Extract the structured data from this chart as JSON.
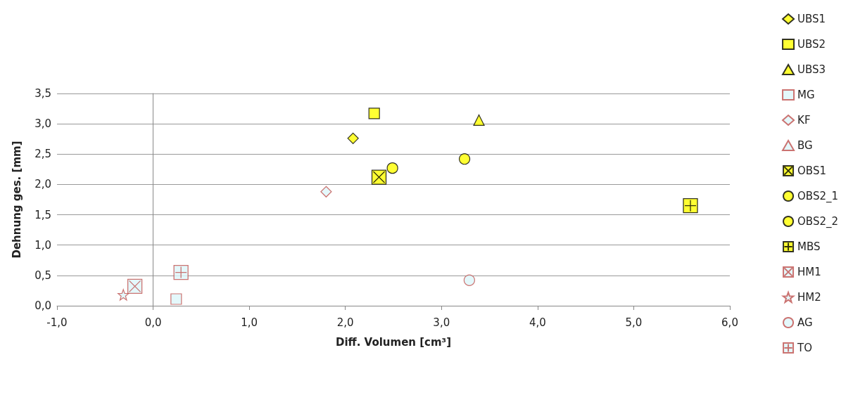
{
  "chart_data": {
    "type": "scatter",
    "xlabel": "Diff. Volumen [cm³]",
    "ylabel": "Dehnung ges. [mm]",
    "xlim": [
      -1,
      6
    ],
    "xticks": [
      {
        "value": -1,
        "label": "-1,0"
      },
      {
        "value": 0,
        "label": "0,0"
      },
      {
        "value": 1,
        "label": "1,0"
      },
      {
        "value": 2,
        "label": "2,0"
      },
      {
        "value": 3,
        "label": "3,0"
      },
      {
        "value": 4,
        "label": "4,0"
      },
      {
        "value": 5,
        "label": "5,0"
      },
      {
        "value": 6,
        "label": "6,0"
      }
    ],
    "ylim": [
      0,
      3.5
    ],
    "yticks": [
      {
        "value": 0,
        "label": "0,0"
      },
      {
        "value": 0.5,
        "label": "0,5"
      },
      {
        "value": 1,
        "label": "1,0"
      },
      {
        "value": 1.5,
        "label": "1,5"
      },
      {
        "value": 2,
        "label": "2,0"
      },
      {
        "value": 2.5,
        "label": "2,5"
      },
      {
        "value": 3,
        "label": "3,0"
      },
      {
        "value": 3.5,
        "label": "3,5"
      }
    ],
    "grid": "y",
    "legend": "right",
    "series": [
      {
        "name": "UBS1",
        "marker": "diamond",
        "color": "#ffff00",
        "x": [
          2.08
        ],
        "values": [
          2.76
        ]
      },
      {
        "name": "UBS2",
        "marker": "square",
        "color": "#ffff00",
        "x": [
          2.3
        ],
        "values": [
          3.17
        ]
      },
      {
        "name": "UBS3",
        "marker": "triangle",
        "color": "#ffff00",
        "x": [
          3.39
        ],
        "values": [
          3.06
        ]
      },
      {
        "name": "MG",
        "marker": "square",
        "color": "#c0504d",
        "x": [
          0.24
        ],
        "values": [
          0.11
        ]
      },
      {
        "name": "KF",
        "marker": "diamond",
        "color": "#c0504d",
        "x": [
          1.8
        ],
        "values": [
          1.88
        ]
      },
      {
        "name": "BG",
        "marker": "triangle",
        "color": "#c0504d",
        "x": [
          null
        ],
        "values": [
          null
        ]
      },
      {
        "name": "OBS1",
        "marker": "cross",
        "color": "#ffff00",
        "x": [
          2.35
        ],
        "values": [
          2.12
        ]
      },
      {
        "name": "OBS2_1",
        "marker": "circle",
        "color": "#ffff00",
        "x": [
          2.49
        ],
        "values": [
          2.27
        ]
      },
      {
        "name": "OBS2_2",
        "marker": "circle",
        "color": "#ffff00",
        "x": [
          3.24
        ],
        "values": [
          2.42
        ]
      },
      {
        "name": "MBS",
        "marker": "plus",
        "color": "#ffff00",
        "x": [
          5.59
        ],
        "values": [
          1.65
        ]
      },
      {
        "name": "HM1",
        "marker": "cross",
        "color": "#c0504d",
        "x": [
          -0.19
        ],
        "values": [
          0.32
        ]
      },
      {
        "name": "HM2",
        "marker": "star",
        "color": "#c0504d",
        "x": [
          -0.31
        ],
        "values": [
          0.18
        ]
      },
      {
        "name": "AG",
        "marker": "circle",
        "color": "#c0504d",
        "x": [
          3.29
        ],
        "values": [
          0.42
        ]
      },
      {
        "name": "TO",
        "marker": "plus",
        "color": "#c0504d",
        "x": [
          0.29
        ],
        "values": [
          0.55
        ]
      }
    ]
  }
}
